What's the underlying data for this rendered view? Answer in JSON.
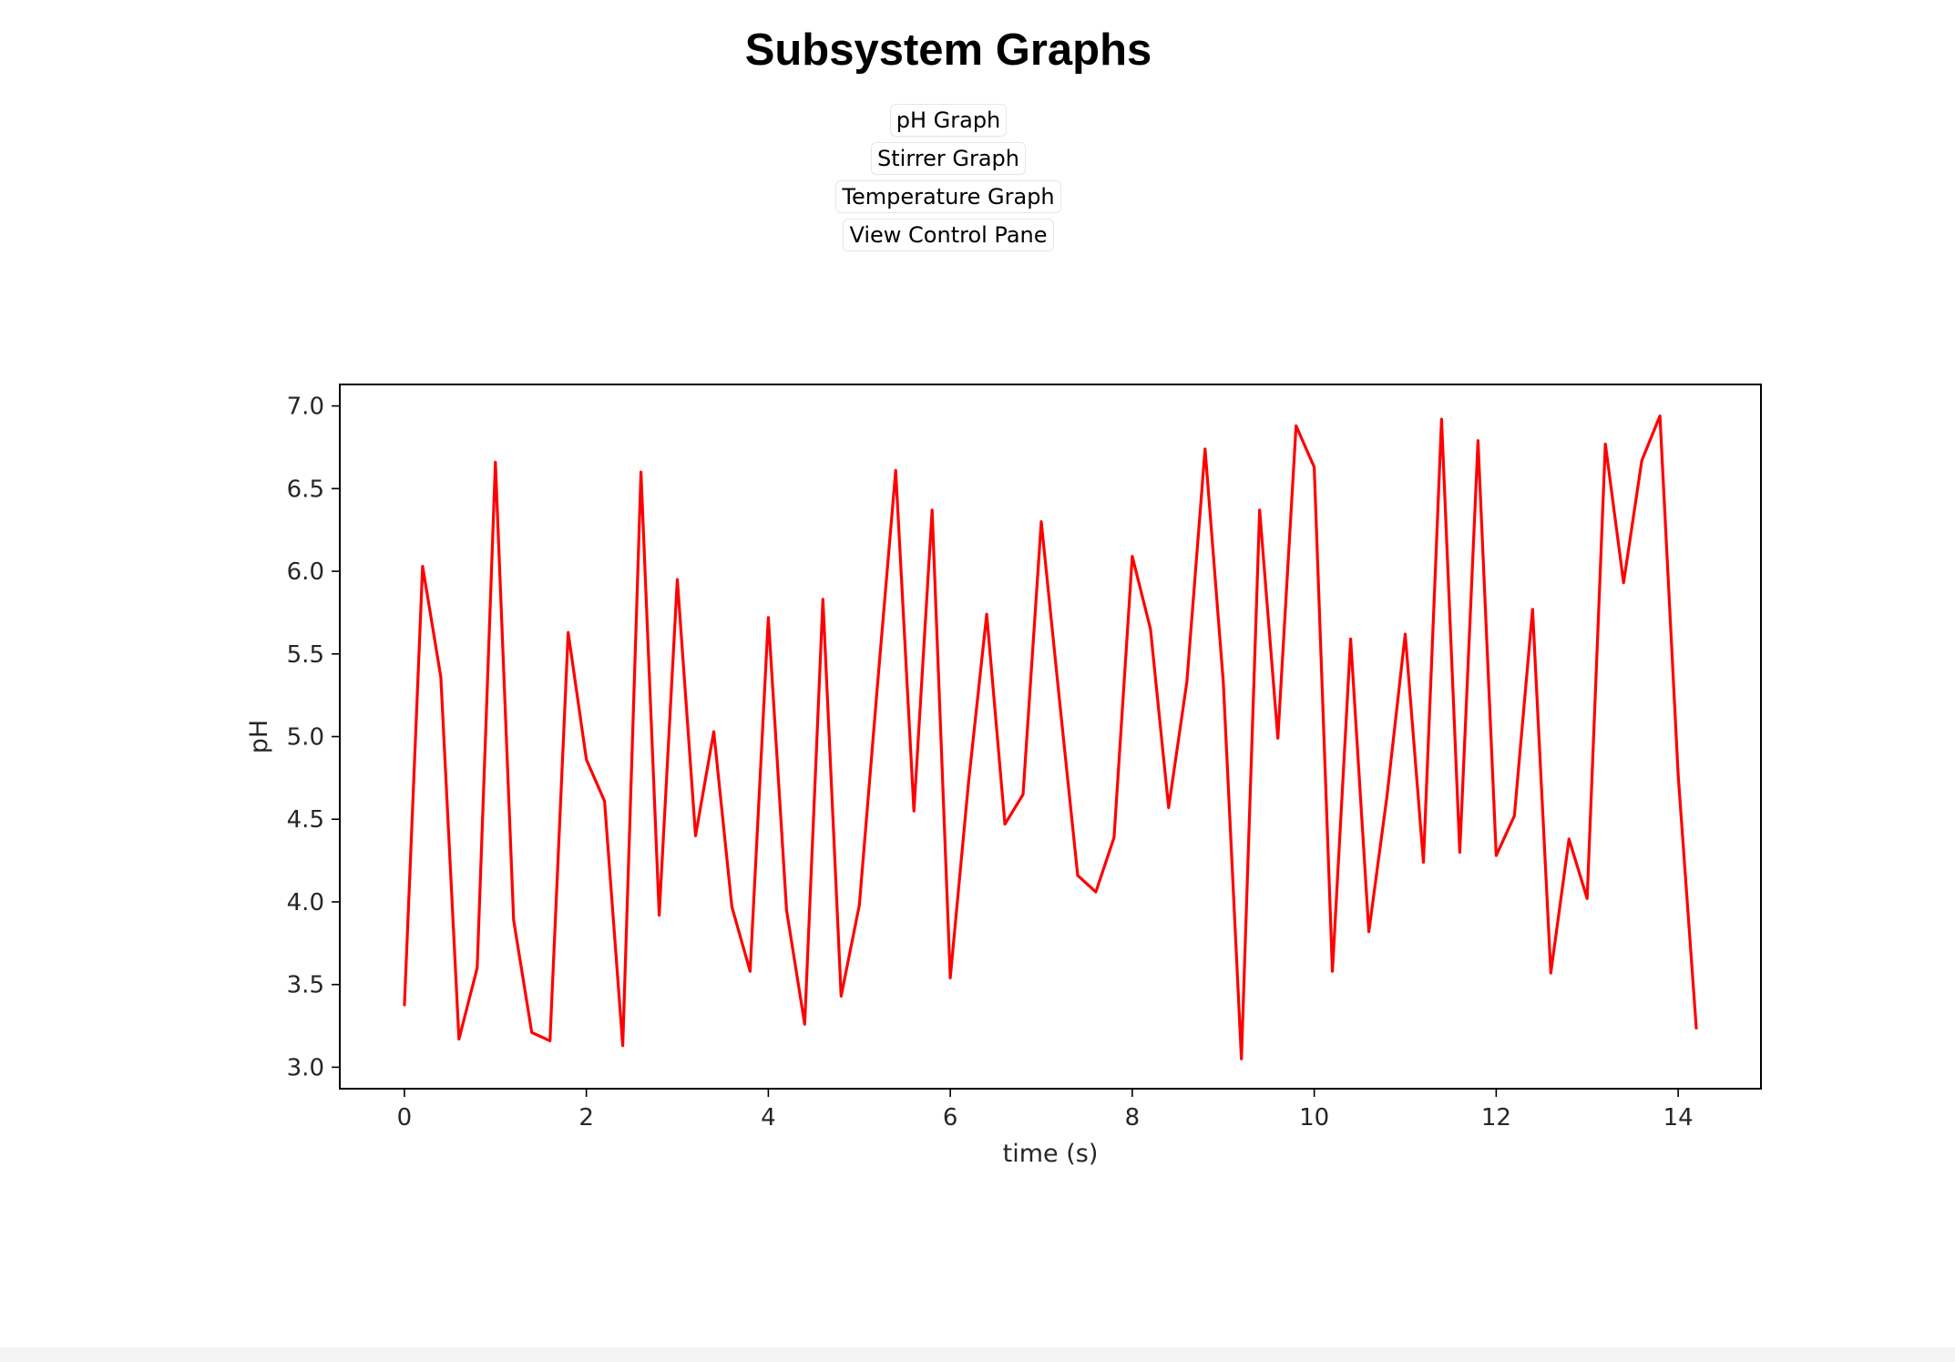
{
  "page": {
    "title": "Subsystem Graphs"
  },
  "nav": {
    "buttons": [
      {
        "label": "pH Graph"
      },
      {
        "label": "Stirrer Graph"
      },
      {
        "label": "Temperature Graph"
      },
      {
        "label": "View Control Pane"
      }
    ]
  },
  "chart_data": {
    "type": "line",
    "title": "",
    "xlabel": "time (s)",
    "ylabel": "pH",
    "xlim": [
      -0.71,
      14.91
    ],
    "ylim": [
      2.87,
      7.13
    ],
    "xticks": [
      0,
      2,
      4,
      6,
      8,
      10,
      12,
      14
    ],
    "yticks": [
      3.0,
      3.5,
      4.0,
      4.5,
      5.0,
      5.5,
      6.0,
      6.5,
      7.0
    ],
    "grid": false,
    "legend": "none",
    "series": [
      {
        "color": "#ff0000",
        "x": [
          0.0,
          0.2,
          0.4,
          0.6,
          0.8,
          1.0,
          1.2,
          1.4,
          1.6,
          1.8,
          2.0,
          2.2,
          2.4,
          2.6,
          2.8,
          3.0,
          3.2,
          3.4,
          3.6,
          3.8,
          4.0,
          4.2,
          4.4,
          4.6,
          4.8,
          5.0,
          5.2,
          5.4,
          5.6,
          5.8,
          6.0,
          6.2,
          6.4,
          6.6,
          6.8,
          7.0,
          7.2,
          7.4,
          7.6,
          7.8,
          8.0,
          8.2,
          8.4,
          8.6,
          8.8,
          9.0,
          9.2,
          9.4,
          9.6,
          9.8,
          10.0,
          10.2,
          10.4,
          10.6,
          10.8,
          11.0,
          11.2,
          11.4,
          11.6,
          11.8,
          12.0,
          12.2,
          12.4,
          12.6,
          12.8,
          13.0,
          13.2,
          13.4,
          13.6,
          13.8,
          14.0,
          14.2
        ],
        "y": [
          3.37,
          6.03,
          5.36,
          3.17,
          3.6,
          6.66,
          3.89,
          3.21,
          3.16,
          5.63,
          4.86,
          4.61,
          3.13,
          6.6,
          3.92,
          5.95,
          4.4,
          5.03,
          3.97,
          3.58,
          5.72,
          3.95,
          3.26,
          5.83,
          3.43,
          3.98,
          5.31,
          6.61,
          4.55,
          6.37,
          3.54,
          4.72,
          5.74,
          4.47,
          4.65,
          6.3,
          5.22,
          4.16,
          4.06,
          4.39,
          6.09,
          5.65,
          4.57,
          5.33,
          6.74,
          5.33,
          3.05,
          6.37,
          4.99,
          6.88,
          6.63,
          3.58,
          5.59,
          3.82,
          4.64,
          5.62,
          4.24,
          6.92,
          4.3,
          6.79,
          4.28,
          4.52,
          5.77,
          3.57,
          4.38,
          4.02,
          6.77,
          5.93,
          6.67,
          6.94,
          4.77,
          3.23
        ]
      }
    ]
  }
}
